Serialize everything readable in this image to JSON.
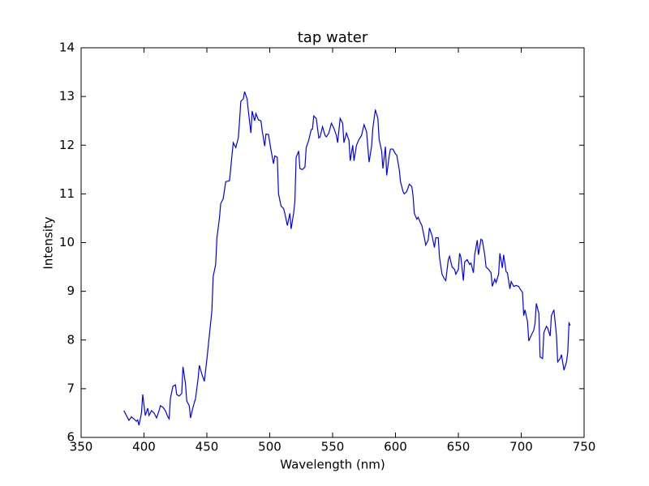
{
  "chart_data": {
    "type": "line",
    "title": "tap water",
    "x_label": "Wavelength (nm)",
    "y_label": "Intensity",
    "x": [
      384,
      386,
      388,
      390,
      392,
      394,
      395,
      396,
      398,
      399,
      401,
      403,
      404,
      406,
      408,
      410,
      412,
      413,
      415,
      417,
      419,
      420,
      421,
      423,
      425,
      426,
      428,
      430,
      431,
      433,
      434,
      436,
      437,
      439,
      441,
      443,
      444,
      446,
      448,
      450,
      452,
      454,
      455,
      457,
      458,
      460,
      461,
      463,
      465,
      468,
      470,
      471,
      473,
      475,
      476,
      477,
      479,
      480,
      482,
      483,
      485,
      486,
      488,
      489,
      491,
      493,
      494,
      496,
      497,
      499,
      501,
      503,
      504,
      506,
      507,
      509,
      511,
      512,
      514,
      516,
      517,
      519,
      520,
      521,
      523,
      524,
      526,
      528,
      529,
      531,
      533,
      534,
      535,
      537,
      539,
      540,
      542,
      544,
      545,
      547,
      549,
      551,
      553,
      554,
      556,
      558,
      559,
      561,
      563,
      564,
      566,
      567,
      569,
      571,
      573,
      575,
      577,
      579,
      581,
      582,
      584,
      586,
      587,
      589,
      590,
      592,
      593,
      595,
      596,
      598,
      600,
      601,
      603,
      604,
      606,
      607,
      609,
      611,
      613,
      614,
      615,
      617,
      618,
      620,
      621,
      623,
      624,
      626,
      627,
      629,
      631,
      632,
      634,
      635,
      637,
      639,
      640,
      642,
      643,
      645,
      647,
      648,
      650,
      651,
      652,
      654,
      655,
      657,
      659,
      660,
      662,
      663,
      665,
      666,
      668,
      669,
      671,
      672,
      674,
      676,
      677,
      679,
      680,
      682,
      683,
      685,
      686,
      688,
      689,
      691,
      692,
      694,
      696,
      698,
      699,
      701,
      702,
      703,
      705,
      706,
      708,
      710,
      711,
      712,
      714,
      715,
      717,
      718,
      720,
      721,
      723,
      724,
      726,
      728,
      729,
      731,
      732,
      734,
      736,
      737,
      738,
      739
    ],
    "series": [
      {
        "name": "tap water",
        "color": "#0000ff",
        "values": [
          6.55,
          6.45,
          6.35,
          6.42,
          6.38,
          6.33,
          6.36,
          6.25,
          6.5,
          6.88,
          6.45,
          6.6,
          6.45,
          6.55,
          6.5,
          6.4,
          6.55,
          6.65,
          6.62,
          6.55,
          6.42,
          6.38,
          6.8,
          7.05,
          7.08,
          6.88,
          6.85,
          6.9,
          7.45,
          7.1,
          6.75,
          6.65,
          6.4,
          6.62,
          6.8,
          7.2,
          7.48,
          7.3,
          7.15,
          7.6,
          8.1,
          8.6,
          9.3,
          9.55,
          10.1,
          10.5,
          10.8,
          10.9,
          11.25,
          11.27,
          11.8,
          12.05,
          11.95,
          12.15,
          12.5,
          12.9,
          12.95,
          13.1,
          12.95,
          12.7,
          12.25,
          12.7,
          12.5,
          12.65,
          12.52,
          12.5,
          12.3,
          11.98,
          12.23,
          12.22,
          11.9,
          11.62,
          11.78,
          11.75,
          11.0,
          10.75,
          10.7,
          10.6,
          10.35,
          10.6,
          10.28,
          10.6,
          10.85,
          11.75,
          11.88,
          11.52,
          11.5,
          11.55,
          11.95,
          12.1,
          12.32,
          12.33,
          12.6,
          12.55,
          12.15,
          12.17,
          12.38,
          12.2,
          12.17,
          12.25,
          12.45,
          12.35,
          12.2,
          12.05,
          12.55,
          12.45,
          12.05,
          12.25,
          12.1,
          11.68,
          12.0,
          11.68,
          12.0,
          12.12,
          12.2,
          12.42,
          12.28,
          11.65,
          11.98,
          12.35,
          12.73,
          12.55,
          12.12,
          11.88,
          11.52,
          11.97,
          11.38,
          11.78,
          11.92,
          11.92,
          11.82,
          11.8,
          11.5,
          11.25,
          11.05,
          11.0,
          11.05,
          11.2,
          11.15,
          10.95,
          10.6,
          10.48,
          10.52,
          10.4,
          10.35,
          10.1,
          9.95,
          10.05,
          10.3,
          10.15,
          9.9,
          10.1,
          10.1,
          9.7,
          9.35,
          9.25,
          9.22,
          9.65,
          9.72,
          9.5,
          9.45,
          9.35,
          9.45,
          9.78,
          9.7,
          9.22,
          9.6,
          9.65,
          9.55,
          9.58,
          9.38,
          9.75,
          10.05,
          9.75,
          10.07,
          10.05,
          9.75,
          9.5,
          9.45,
          9.38,
          9.1,
          9.25,
          9.18,
          9.35,
          9.78,
          9.48,
          9.75,
          9.4,
          9.38,
          9.05,
          9.2,
          9.1,
          9.12,
          9.1,
          9.05,
          8.98,
          8.5,
          8.62,
          8.38,
          7.98,
          8.1,
          8.2,
          8.35,
          8.75,
          8.55,
          7.65,
          7.62,
          8.15,
          8.28,
          8.25,
          8.08,
          8.5,
          8.62,
          8.1,
          7.55,
          7.62,
          7.7,
          7.38,
          7.55,
          7.75,
          8.35,
          8.3
        ]
      }
    ],
    "xlim": [
      350,
      750
    ],
    "xticks": [
      350,
      400,
      450,
      500,
      550,
      600,
      650,
      700,
      750
    ],
    "ylim": [
      6,
      14
    ],
    "yticks": [
      6,
      7,
      8,
      9,
      10,
      11,
      12,
      13,
      14
    ],
    "grid": false
  }
}
